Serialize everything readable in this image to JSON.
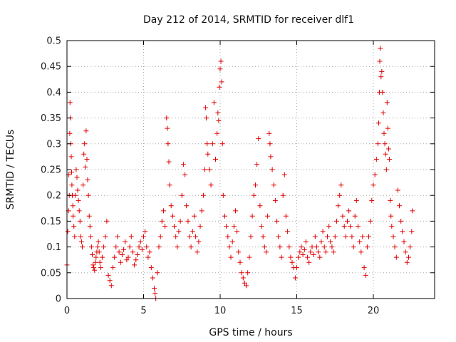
{
  "chart_data": {
    "type": "scatter",
    "title": "Day 212 of 2014, SRMTID for receiver dlf1",
    "xlabel": "GPS time / hours",
    "ylabel": "SRMTID / TECUs",
    "xlim": [
      0,
      24
    ],
    "ylim": [
      0,
      0.5
    ],
    "xticks": [
      0,
      5,
      10,
      15,
      20
    ],
    "yticks": [
      0,
      0.05,
      0.1,
      0.15,
      0.2,
      0.25,
      0.3,
      0.35,
      0.4,
      0.45,
      0.5
    ],
    "xtick_labels": [
      "0",
      "5",
      "10",
      "15",
      "20"
    ],
    "ytick_labels": [
      "0",
      "0.05",
      "0.1",
      "0.15",
      "0.2",
      "0.25",
      "0.3",
      "0.35",
      "0.4",
      "0.45",
      "0.5"
    ],
    "grid": true,
    "marker": "+",
    "series": [
      {
        "name": "SRMTID",
        "color": "#e00000",
        "points": [
          [
            0.0,
            0.065
          ],
          [
            0.05,
            0.13
          ],
          [
            0.1,
            0.17
          ],
          [
            0.12,
            0.24
          ],
          [
            0.15,
            0.2
          ],
          [
            0.18,
            0.32
          ],
          [
            0.2,
            0.38
          ],
          [
            0.22,
            0.35
          ],
          [
            0.25,
            0.3
          ],
          [
            0.28,
            0.275
          ],
          [
            0.3,
            0.245
          ],
          [
            0.32,
            0.22
          ],
          [
            0.35,
            0.2
          ],
          [
            0.38,
            0.18
          ],
          [
            0.4,
            0.16
          ],
          [
            0.45,
            0.14
          ],
          [
            0.5,
            0.12
          ],
          [
            0.55,
            0.2
          ],
          [
            0.6,
            0.25
          ],
          [
            0.65,
            0.235
          ],
          [
            0.7,
            0.21
          ],
          [
            0.75,
            0.19
          ],
          [
            0.8,
            0.17
          ],
          [
            0.85,
            0.15
          ],
          [
            0.9,
            0.12
          ],
          [
            0.95,
            0.11
          ],
          [
            1.0,
            0.1
          ],
          [
            1.05,
            0.22
          ],
          [
            1.1,
            0.28
          ],
          [
            1.15,
            0.3
          ],
          [
            1.2,
            0.255
          ],
          [
            1.25,
            0.325
          ],
          [
            1.3,
            0.27
          ],
          [
            1.35,
            0.23
          ],
          [
            1.4,
            0.2
          ],
          [
            1.45,
            0.16
          ],
          [
            1.5,
            0.14
          ],
          [
            1.55,
            0.12
          ],
          [
            1.6,
            0.1
          ],
          [
            1.65,
            0.085
          ],
          [
            1.7,
            0.065
          ],
          [
            1.75,
            0.06
          ],
          [
            1.8,
            0.055
          ],
          [
            1.85,
            0.07
          ],
          [
            1.9,
            0.08
          ],
          [
            1.95,
            0.09
          ],
          [
            2.0,
            0.1
          ],
          [
            2.05,
            0.11
          ],
          [
            2.1,
            0.09
          ],
          [
            2.15,
            0.07
          ],
          [
            2.2,
            0.06
          ],
          [
            2.3,
            0.08
          ],
          [
            2.4,
            0.1
          ],
          [
            2.5,
            0.12
          ],
          [
            2.6,
            0.15
          ],
          [
            2.7,
            0.045
          ],
          [
            2.8,
            0.035
          ],
          [
            2.9,
            0.025
          ],
          [
            3.0,
            0.06
          ],
          [
            3.1,
            0.08
          ],
          [
            3.2,
            0.1
          ],
          [
            3.3,
            0.12
          ],
          [
            3.4,
            0.09
          ],
          [
            3.5,
            0.07
          ],
          [
            3.6,
            0.085
          ],
          [
            3.7,
            0.095
          ],
          [
            3.8,
            0.11
          ],
          [
            3.9,
            0.075
          ],
          [
            4.0,
            0.08
          ],
          [
            4.1,
            0.1
          ],
          [
            4.2,
            0.12
          ],
          [
            4.3,
            0.09
          ],
          [
            4.4,
            0.065
          ],
          [
            4.5,
            0.075
          ],
          [
            4.6,
            0.085
          ],
          [
            4.7,
            0.1
          ],
          [
            4.8,
            0.11
          ],
          [
            4.9,
            0.095
          ],
          [
            5.0,
            0.12
          ],
          [
            5.1,
            0.13
          ],
          [
            5.2,
            0.1
          ],
          [
            5.3,
            0.08
          ],
          [
            5.4,
            0.09
          ],
          [
            5.5,
            0.06
          ],
          [
            5.6,
            0.04
          ],
          [
            5.7,
            0.02
          ],
          [
            5.75,
            0.01
          ],
          [
            5.8,
            0.0
          ],
          [
            5.9,
            0.05
          ],
          [
            6.0,
            0.1
          ],
          [
            6.1,
            0.12
          ],
          [
            6.2,
            0.15
          ],
          [
            6.3,
            0.17
          ],
          [
            6.4,
            0.14
          ],
          [
            6.5,
            0.35
          ],
          [
            6.55,
            0.33
          ],
          [
            6.6,
            0.3
          ],
          [
            6.65,
            0.265
          ],
          [
            6.7,
            0.22
          ],
          [
            6.8,
            0.18
          ],
          [
            6.9,
            0.16
          ],
          [
            7.0,
            0.14
          ],
          [
            7.1,
            0.12
          ],
          [
            7.2,
            0.1
          ],
          [
            7.3,
            0.13
          ],
          [
            7.4,
            0.15
          ],
          [
            7.5,
            0.2
          ],
          [
            7.6,
            0.26
          ],
          [
            7.7,
            0.24
          ],
          [
            7.8,
            0.18
          ],
          [
            7.9,
            0.15
          ],
          [
            8.0,
            0.12
          ],
          [
            8.1,
            0.1
          ],
          [
            8.2,
            0.13
          ],
          [
            8.3,
            0.16
          ],
          [
            8.4,
            0.12
          ],
          [
            8.5,
            0.09
          ],
          [
            8.6,
            0.11
          ],
          [
            8.7,
            0.14
          ],
          [
            8.8,
            0.17
          ],
          [
            8.9,
            0.2
          ],
          [
            9.0,
            0.25
          ],
          [
            9.05,
            0.37
          ],
          [
            9.1,
            0.35
          ],
          [
            9.15,
            0.3
          ],
          [
            9.2,
            0.28
          ],
          [
            9.3,
            0.25
          ],
          [
            9.4,
            0.22
          ],
          [
            9.5,
            0.3
          ],
          [
            9.6,
            0.38
          ],
          [
            9.7,
            0.27
          ],
          [
            9.8,
            0.32
          ],
          [
            9.85,
            0.36
          ],
          [
            9.9,
            0.345
          ],
          [
            9.95,
            0.41
          ],
          [
            10.0,
            0.445
          ],
          [
            10.05,
            0.46
          ],
          [
            10.1,
            0.42
          ],
          [
            10.15,
            0.3
          ],
          [
            10.2,
            0.2
          ],
          [
            10.3,
            0.16
          ],
          [
            10.4,
            0.14
          ],
          [
            10.5,
            0.12
          ],
          [
            10.6,
            0.1
          ],
          [
            10.7,
            0.08
          ],
          [
            10.8,
            0.11
          ],
          [
            10.9,
            0.14
          ],
          [
            11.0,
            0.17
          ],
          [
            11.1,
            0.13
          ],
          [
            11.2,
            0.09
          ],
          [
            11.3,
            0.07
          ],
          [
            11.4,
            0.05
          ],
          [
            11.5,
            0.04
          ],
          [
            11.6,
            0.03
          ],
          [
            11.7,
            0.025
          ],
          [
            11.8,
            0.05
          ],
          [
            11.9,
            0.08
          ],
          [
            12.0,
            0.12
          ],
          [
            12.1,
            0.16
          ],
          [
            12.2,
            0.2
          ],
          [
            12.3,
            0.22
          ],
          [
            12.4,
            0.26
          ],
          [
            12.5,
            0.31
          ],
          [
            12.6,
            0.18
          ],
          [
            12.7,
            0.14
          ],
          [
            12.8,
            0.12
          ],
          [
            12.9,
            0.1
          ],
          [
            13.0,
            0.09
          ],
          [
            13.1,
            0.16
          ],
          [
            13.2,
            0.32
          ],
          [
            13.25,
            0.3
          ],
          [
            13.3,
            0.275
          ],
          [
            13.4,
            0.25
          ],
          [
            13.5,
            0.22
          ],
          [
            13.6,
            0.19
          ],
          [
            13.7,
            0.15
          ],
          [
            13.8,
            0.12
          ],
          [
            13.9,
            0.1
          ],
          [
            14.0,
            0.08
          ],
          [
            14.1,
            0.2
          ],
          [
            14.2,
            0.24
          ],
          [
            14.3,
            0.16
          ],
          [
            14.4,
            0.13
          ],
          [
            14.5,
            0.1
          ],
          [
            14.6,
            0.08
          ],
          [
            14.7,
            0.07
          ],
          [
            14.8,
            0.06
          ],
          [
            14.9,
            0.04
          ],
          [
            15.0,
            0.06
          ],
          [
            15.1,
            0.08
          ],
          [
            15.2,
            0.09
          ],
          [
            15.3,
            0.1
          ],
          [
            15.4,
            0.085
          ],
          [
            15.5,
            0.095
          ],
          [
            15.6,
            0.11
          ],
          [
            15.7,
            0.08
          ],
          [
            15.8,
            0.07
          ],
          [
            15.9,
            0.09
          ],
          [
            16.0,
            0.1
          ],
          [
            16.1,
            0.085
          ],
          [
            16.2,
            0.12
          ],
          [
            16.3,
            0.1
          ],
          [
            16.4,
            0.09
          ],
          [
            16.5,
            0.08
          ],
          [
            16.6,
            0.11
          ],
          [
            16.7,
            0.13
          ],
          [
            16.8,
            0.1
          ],
          [
            16.9,
            0.09
          ],
          [
            17.0,
            0.12
          ],
          [
            17.1,
            0.14
          ],
          [
            17.2,
            0.11
          ],
          [
            17.3,
            0.1
          ],
          [
            17.4,
            0.09
          ],
          [
            17.5,
            0.12
          ],
          [
            17.6,
            0.15
          ],
          [
            17.7,
            0.18
          ],
          [
            17.8,
            0.2
          ],
          [
            17.9,
            0.22
          ],
          [
            18.0,
            0.16
          ],
          [
            18.1,
            0.14
          ],
          [
            18.2,
            0.12
          ],
          [
            18.3,
            0.15
          ],
          [
            18.4,
            0.17
          ],
          [
            18.5,
            0.14
          ],
          [
            18.6,
            0.12
          ],
          [
            18.7,
            0.1
          ],
          [
            18.8,
            0.16
          ],
          [
            18.9,
            0.19
          ],
          [
            19.0,
            0.14
          ],
          [
            19.1,
            0.11
          ],
          [
            19.2,
            0.09
          ],
          [
            19.3,
            0.12
          ],
          [
            19.4,
            0.06
          ],
          [
            19.5,
            0.045
          ],
          [
            19.6,
            0.1
          ],
          [
            19.7,
            0.12
          ],
          [
            19.8,
            0.15
          ],
          [
            19.9,
            0.19
          ],
          [
            20.0,
            0.22
          ],
          [
            20.1,
            0.24
          ],
          [
            20.2,
            0.27
          ],
          [
            20.3,
            0.3
          ],
          [
            20.35,
            0.34
          ],
          [
            20.4,
            0.4
          ],
          [
            20.42,
            0.46
          ],
          [
            20.45,
            0.485
          ],
          [
            20.5,
            0.43
          ],
          [
            20.55,
            0.44
          ],
          [
            20.6,
            0.4
          ],
          [
            20.65,
            0.36
          ],
          [
            20.7,
            0.32
          ],
          [
            20.75,
            0.3
          ],
          [
            20.8,
            0.28
          ],
          [
            20.85,
            0.25
          ],
          [
            20.9,
            0.38
          ],
          [
            20.95,
            0.33
          ],
          [
            21.0,
            0.29
          ],
          [
            21.05,
            0.27
          ],
          [
            21.1,
            0.19
          ],
          [
            21.15,
            0.16
          ],
          [
            21.2,
            0.14
          ],
          [
            21.3,
            0.12
          ],
          [
            21.4,
            0.1
          ],
          [
            21.5,
            0.08
          ],
          [
            21.6,
            0.21
          ],
          [
            21.7,
            0.18
          ],
          [
            21.8,
            0.15
          ],
          [
            21.9,
            0.13
          ],
          [
            22.0,
            0.11
          ],
          [
            22.1,
            0.09
          ],
          [
            22.2,
            0.07
          ],
          [
            22.3,
            0.08
          ],
          [
            22.4,
            0.1
          ],
          [
            22.5,
            0.13
          ],
          [
            22.55,
            0.17
          ]
        ]
      }
    ]
  }
}
